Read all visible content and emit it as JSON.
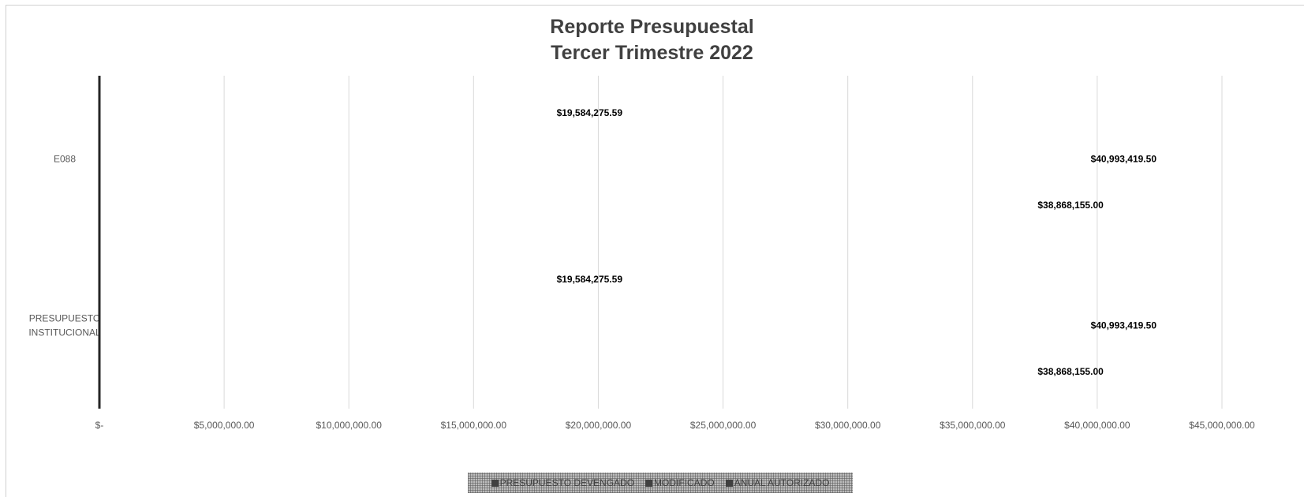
{
  "chart_data": {
    "type": "bar",
    "orientation": "horizontal",
    "title": "Reporte Presupuestal",
    "subtitle": "Tercer Trimestre 2022",
    "categories": [
      "E088",
      "PRESUPUESTO INSTITUCIONAL"
    ],
    "series": [
      {
        "name": "PRESUPUESTO DEVENGADO",
        "values": [
          19584275.59,
          19584275.59
        ],
        "labels": [
          "$19,584,275.59",
          "$19,584,275.59"
        ]
      },
      {
        "name": "MODIFICADO",
        "values": [
          40993419.5,
          40993419.5
        ],
        "labels": [
          "$40,993,419.50",
          "$40,993,419.50"
        ]
      },
      {
        "name": "ANUAL AUTORIZADO",
        "values": [
          38868155.0,
          38868155.0
        ],
        "labels": [
          "$38,868,155.00",
          "$38,868,155.00"
        ]
      }
    ],
    "xlim": [
      0,
      45000000
    ],
    "x_ticks": [
      0,
      5000000,
      10000000,
      15000000,
      20000000,
      25000000,
      30000000,
      35000000,
      40000000,
      45000000
    ],
    "x_tick_labels": [
      "$-",
      "$5,000,000.00",
      "$10,000,000.00",
      "$15,000,000.00",
      "$20,000,000.00",
      "$25,000,000.00",
      "$30,000,000.00",
      "$35,000,000.00",
      "$40,000,000.00",
      "$45,000,000.00"
    ],
    "grid": true,
    "legend": "bottom",
    "colors": {
      "title": "#404040",
      "axis": "#262626",
      "grid": "#d9d9d9",
      "legend_swatch": "#404040"
    }
  }
}
